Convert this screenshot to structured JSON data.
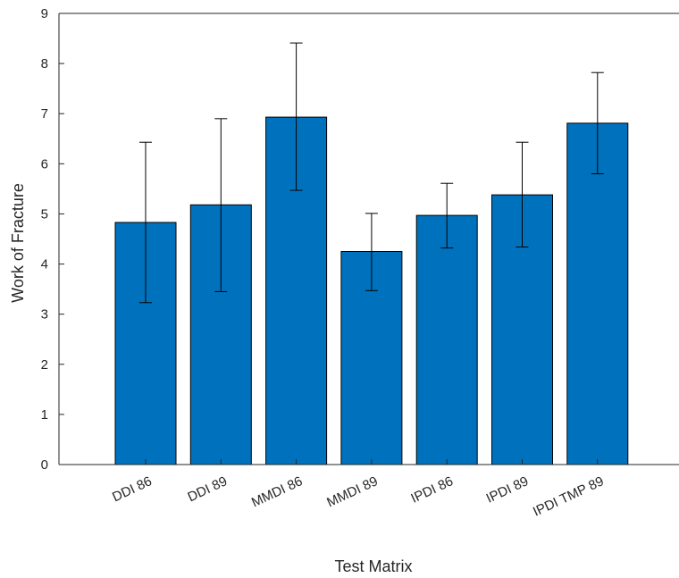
{
  "chart_data": {
    "type": "bar",
    "categories": [
      "DDI 86",
      "DDI 89",
      "MMDI 86",
      "MMDI 89",
      "IPDI 86",
      "IPDI 89",
      "IPDI TMP 89"
    ],
    "values": [
      4.83,
      5.18,
      6.93,
      4.25,
      4.97,
      5.38,
      6.81
    ],
    "error_lower": [
      3.23,
      3.45,
      5.47,
      3.47,
      4.32,
      4.34,
      5.8
    ],
    "error_upper": [
      6.43,
      6.9,
      8.41,
      5.01,
      5.61,
      6.43,
      7.82
    ],
    "title": "",
    "xlabel": "Test Matrix",
    "ylabel": "Work of Fracture",
    "ylim": [
      0,
      9
    ],
    "yticks": [
      "0",
      "1",
      "2",
      "3",
      "4",
      "5",
      "6",
      "7",
      "8",
      "9"
    ],
    "grid": false,
    "bar_color": "#0072BD",
    "edge_color": "#000000",
    "axis_color": "#262626"
  }
}
